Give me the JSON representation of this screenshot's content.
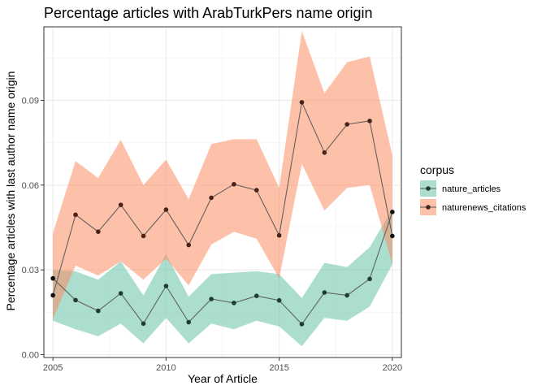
{
  "chart_data": {
    "type": "line",
    "title": "Percentage articles with ArabTurkPers name origin",
    "xlabel": "Year of Article",
    "ylabel": "Percentage articles with last author name origin",
    "xlim": [
      2004.6,
      2020.4
    ],
    "ylim": [
      -0.001,
      0.116
    ],
    "x_ticks": [
      2005,
      2010,
      2015,
      2020
    ],
    "y_ticks": [
      0.0,
      0.03,
      0.06,
      0.09
    ],
    "y_tick_labels": [
      "0.00",
      "0.03",
      "0.06",
      "0.09"
    ],
    "grid": true,
    "legend": {
      "title": "corpus",
      "position": "right"
    },
    "x": [
      2005,
      2006,
      2007,
      2008,
      2009,
      2010,
      2011,
      2012,
      2013,
      2014,
      2015,
      2016,
      2017,
      2018,
      2019,
      2020
    ],
    "series": [
      {
        "name": "nature_articles",
        "color": "#66c2a5",
        "values": [
          0.027,
          0.0193,
          0.0155,
          0.0217,
          0.011,
          0.0243,
          0.0115,
          0.0197,
          0.0183,
          0.0208,
          0.0192,
          0.0108,
          0.022,
          0.021,
          0.0268,
          0.0505
        ],
        "lower": [
          0.012,
          0.009,
          0.0065,
          0.011,
          0.004,
          0.013,
          0.004,
          0.011,
          0.009,
          0.012,
          0.01,
          0.003,
          0.013,
          0.012,
          0.017,
          0.032
        ],
        "upper": [
          0.03,
          0.0295,
          0.0265,
          0.033,
          0.021,
          0.0355,
          0.0205,
          0.0285,
          0.029,
          0.0295,
          0.0285,
          0.02,
          0.0325,
          0.031,
          0.038,
          0.0515
        ]
      },
      {
        "name": "naturenews_citations",
        "color": "#fc8d62",
        "values": [
          0.021,
          0.0495,
          0.0435,
          0.053,
          0.042,
          0.0513,
          0.0388,
          0.0555,
          0.0603,
          0.0582,
          0.0422,
          0.0893,
          0.0715,
          0.0815,
          0.0827,
          0.042
        ],
        "lower": [
          0.0125,
          0.0315,
          0.028,
          0.033,
          0.0265,
          0.034,
          0.0245,
          0.039,
          0.0435,
          0.041,
          0.027,
          0.0675,
          0.051,
          0.059,
          0.06,
          0.032
        ],
        "upper": [
          0.043,
          0.0685,
          0.0625,
          0.076,
          0.06,
          0.069,
          0.055,
          0.0745,
          0.0762,
          0.0762,
          0.059,
          0.1145,
          0.0925,
          0.1035,
          0.1055,
          0.0705
        ]
      }
    ]
  }
}
